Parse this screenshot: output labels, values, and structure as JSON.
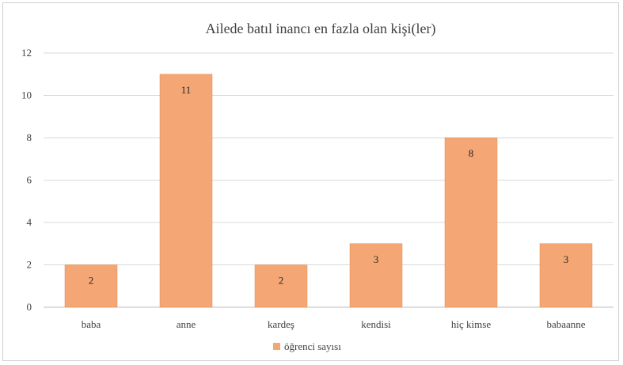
{
  "chart_data": {
    "type": "bar",
    "title": "Ailede batıl inancı en fazla olan kişi(ler)",
    "categories": [
      "baba",
      "anne",
      "kardeş",
      "kendisi",
      "hiç kimse",
      "babaanne"
    ],
    "series": [
      {
        "name": "öğrenci sayısı",
        "values": [
          2,
          11,
          2,
          3,
          8,
          3
        ]
      }
    ],
    "ylim": [
      0,
      12
    ],
    "yticks": [
      0,
      2,
      4,
      6,
      8,
      10,
      12
    ],
    "grid": true,
    "legend": "bottom",
    "colors": {
      "bar": "#f4a774",
      "bar_stroke": "#e08a52",
      "grid": "#d9d9d9",
      "text": "#404040"
    }
  }
}
